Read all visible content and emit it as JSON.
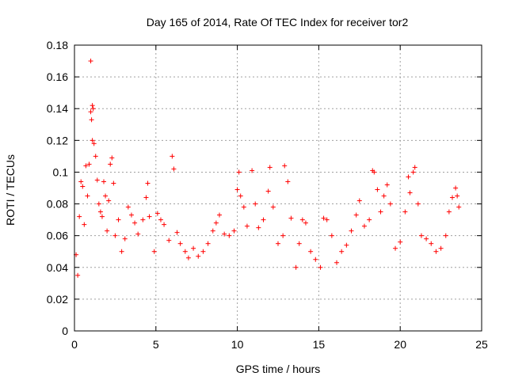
{
  "chart_data": {
    "type": "scatter",
    "title": "Day 165 of 2014, Rate Of TEC Index for receiver tor2",
    "xlabel": "GPS time / hours",
    "ylabel": "ROTI / TECUs",
    "xlim": [
      0,
      25
    ],
    "ylim": [
      0,
      0.18
    ],
    "x_ticks": [
      "0",
      "5",
      "10",
      "15",
      "20",
      "25"
    ],
    "y_ticks": [
      "0",
      "0.02",
      "0.04",
      "0.06",
      "0.08",
      "0.1",
      "0.12",
      "0.14",
      "0.16",
      "0.18"
    ],
    "grid": true,
    "marker": "+",
    "color": "#ff0000",
    "series": [
      {
        "points": [
          [
            0.1,
            0.048
          ],
          [
            0.2,
            0.035
          ],
          [
            0.3,
            0.072
          ],
          [
            0.4,
            0.094
          ],
          [
            0.5,
            0.091
          ],
          [
            0.6,
            0.067
          ],
          [
            0.7,
            0.104
          ],
          [
            0.8,
            0.085
          ],
          [
            0.9,
            0.105
          ],
          [
            1.0,
            0.17
          ],
          [
            1.0,
            0.138
          ],
          [
            1.05,
            0.133
          ],
          [
            1.1,
            0.142
          ],
          [
            1.15,
            0.14
          ],
          [
            1.1,
            0.12
          ],
          [
            1.2,
            0.118
          ],
          [
            1.3,
            0.11
          ],
          [
            1.4,
            0.095
          ],
          [
            1.5,
            0.08
          ],
          [
            1.6,
            0.075
          ],
          [
            1.7,
            0.072
          ],
          [
            1.8,
            0.094
          ],
          [
            1.9,
            0.085
          ],
          [
            2.0,
            0.063
          ],
          [
            2.1,
            0.082
          ],
          [
            2.2,
            0.105
          ],
          [
            2.3,
            0.109
          ],
          [
            2.4,
            0.093
          ],
          [
            2.5,
            0.06
          ],
          [
            2.7,
            0.07
          ],
          [
            2.9,
            0.05
          ],
          [
            3.1,
            0.058
          ],
          [
            3.3,
            0.078
          ],
          [
            3.5,
            0.073
          ],
          [
            3.7,
            0.068
          ],
          [
            3.9,
            0.061
          ],
          [
            4.2,
            0.07
          ],
          [
            4.4,
            0.084
          ],
          [
            4.5,
            0.093
          ],
          [
            4.6,
            0.072
          ],
          [
            4.9,
            0.05
          ],
          [
            5.1,
            0.074
          ],
          [
            5.3,
            0.07
          ],
          [
            5.5,
            0.067
          ],
          [
            5.8,
            0.057
          ],
          [
            6.0,
            0.11
          ],
          [
            6.1,
            0.102
          ],
          [
            6.3,
            0.062
          ],
          [
            6.5,
            0.055
          ],
          [
            6.8,
            0.05
          ],
          [
            7.0,
            0.046
          ],
          [
            7.3,
            0.052
          ],
          [
            7.6,
            0.047
          ],
          [
            7.9,
            0.05
          ],
          [
            8.2,
            0.055
          ],
          [
            8.5,
            0.063
          ],
          [
            8.7,
            0.068
          ],
          [
            8.9,
            0.073
          ],
          [
            9.2,
            0.061
          ],
          [
            9.5,
            0.06
          ],
          [
            9.8,
            0.063
          ],
          [
            10.0,
            0.089
          ],
          [
            10.1,
            0.1
          ],
          [
            10.2,
            0.085
          ],
          [
            10.4,
            0.078
          ],
          [
            10.6,
            0.066
          ],
          [
            10.9,
            0.101
          ],
          [
            11.1,
            0.08
          ],
          [
            11.3,
            0.065
          ],
          [
            11.6,
            0.07
          ],
          [
            11.9,
            0.088
          ],
          [
            12.0,
            0.103
          ],
          [
            12.2,
            0.078
          ],
          [
            12.5,
            0.055
          ],
          [
            12.8,
            0.06
          ],
          [
            12.9,
            0.104
          ],
          [
            13.1,
            0.094
          ],
          [
            13.3,
            0.071
          ],
          [
            13.6,
            0.04
          ],
          [
            13.8,
            0.055
          ],
          [
            14.0,
            0.07
          ],
          [
            14.2,
            0.068
          ],
          [
            14.5,
            0.05
          ],
          [
            14.8,
            0.045
          ],
          [
            15.1,
            0.04
          ],
          [
            15.3,
            0.071
          ],
          [
            15.5,
            0.07
          ],
          [
            15.8,
            0.06
          ],
          [
            16.1,
            0.043
          ],
          [
            16.4,
            0.05
          ],
          [
            16.7,
            0.054
          ],
          [
            17.0,
            0.063
          ],
          [
            17.3,
            0.073
          ],
          [
            17.5,
            0.082
          ],
          [
            17.8,
            0.066
          ],
          [
            18.1,
            0.07
          ],
          [
            18.3,
            0.101
          ],
          [
            18.4,
            0.1
          ],
          [
            18.6,
            0.089
          ],
          [
            18.8,
            0.075
          ],
          [
            19.0,
            0.085
          ],
          [
            19.2,
            0.092
          ],
          [
            19.4,
            0.08
          ],
          [
            19.7,
            0.052
          ],
          [
            20.0,
            0.056
          ],
          [
            20.3,
            0.075
          ],
          [
            20.5,
            0.097
          ],
          [
            20.6,
            0.087
          ],
          [
            20.8,
            0.1
          ],
          [
            20.9,
            0.103
          ],
          [
            21.1,
            0.08
          ],
          [
            21.3,
            0.06
          ],
          [
            21.6,
            0.058
          ],
          [
            21.9,
            0.055
          ],
          [
            22.2,
            0.05
          ],
          [
            22.5,
            0.052
          ],
          [
            22.8,
            0.06
          ],
          [
            23.0,
            0.075
          ],
          [
            23.2,
            0.084
          ],
          [
            23.4,
            0.09
          ],
          [
            23.5,
            0.085
          ],
          [
            23.6,
            0.078
          ]
        ]
      }
    ]
  }
}
